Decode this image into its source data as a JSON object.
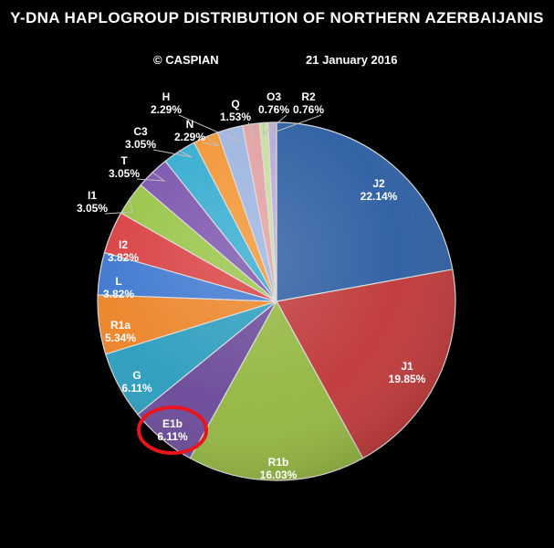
{
  "header": {
    "title": "Y-DNA  HAPLOGROUP DISTRIBUTION  OF  NORTHERN AZERBAIJANIS",
    "credit": "© CASPIAN",
    "date": "21 January 2016"
  },
  "chart_data": {
    "type": "pie",
    "title": "Y-DNA  HAPLOGROUP DISTRIBUTION  OF  NORTHERN AZERBAIJANIS",
    "start_angle_deg": 0,
    "direction": "clockwise",
    "highlighted": "E1b",
    "slices": [
      {
        "label": "J2",
        "value": 22.14,
        "value_label": "22.14%",
        "color": "#2e5fa3"
      },
      {
        "label": "J1",
        "value": 19.85,
        "value_label": "19.85%",
        "color": "#c0393a"
      },
      {
        "label": "R1b",
        "value": 16.03,
        "value_label": "16.03%",
        "color": "#93b741"
      },
      {
        "label": "E1b",
        "value": 6.11,
        "value_label": "6.11%",
        "color": "#6b4a99"
      },
      {
        "label": "G",
        "value": 6.11,
        "value_label": "6.11%",
        "color": "#2c9dbe"
      },
      {
        "label": "R1a",
        "value": 5.34,
        "value_label": "5.34%",
        "color": "#ec8428"
      },
      {
        "label": "L",
        "value": 3.82,
        "value_label": "3.82%",
        "color": "#3f78d0"
      },
      {
        "label": "I2",
        "value": 3.82,
        "value_label": "3.82%",
        "color": "#d94042"
      },
      {
        "label": "I1",
        "value": 3.05,
        "value_label": "3.05%",
        "color": "#98c447"
      },
      {
        "label": "T",
        "value": 3.05,
        "value_label": "3.05%",
        "color": "#7b54ad"
      },
      {
        "label": "C3",
        "value": 3.05,
        "value_label": "3.05%",
        "color": "#34abd0"
      },
      {
        "label": "N",
        "value": 2.29,
        "value_label": "2.29%",
        "color": "#f29533"
      },
      {
        "label": "H",
        "value": 2.29,
        "value_label": "2.29%",
        "color": "#9db4e0"
      },
      {
        "label": "Q",
        "value": 1.53,
        "value_label": "1.53%",
        "color": "#e2a0a1"
      },
      {
        "label": "O3",
        "value": 0.76,
        "value_label": "0.76%",
        "color": "#c6dea0"
      },
      {
        "label": "R2",
        "value": 0.76,
        "value_label": "0.76%",
        "color": "#b9a9d6"
      }
    ]
  }
}
